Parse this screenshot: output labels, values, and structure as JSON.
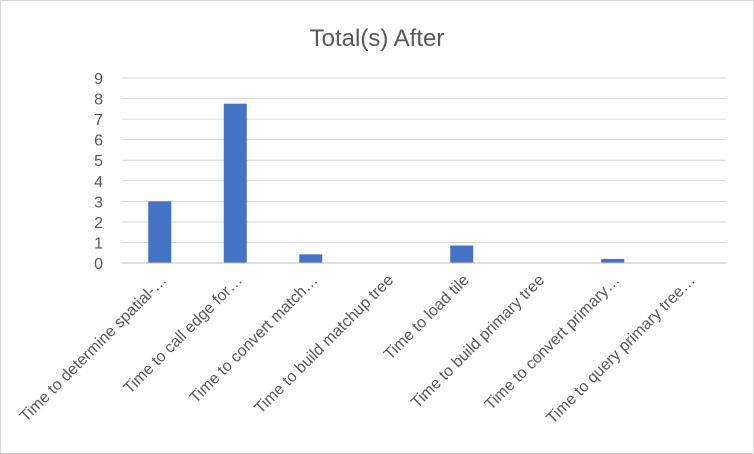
{
  "chart_data": {
    "type": "bar",
    "title": "Total(s) After",
    "xlabel": "",
    "ylabel": "",
    "categories": [
      "Time to determine spatial-…",
      "Time to call edge for…",
      "Time to convert match…",
      "Time to build matchup tree",
      "Time to load tile",
      "Time to build primary tree",
      "Time to convert primary…",
      "Time to query primary tree…"
    ],
    "series": [
      {
        "values": [
          3.0,
          7.75,
          0.42,
          0.02,
          0.85,
          0.02,
          0.2,
          0.02
        ]
      }
    ],
    "ylim": [
      0,
      9
    ],
    "yticks": [
      0,
      1,
      2,
      3,
      4,
      5,
      6,
      7,
      8,
      9
    ],
    "grid": true,
    "legend": "none",
    "colors": {
      "bar": "#4472C4",
      "grid": "#d9d9d9",
      "axis": "#bfbfbf",
      "text": "#595959",
      "border": "#d9d9d9"
    }
  }
}
